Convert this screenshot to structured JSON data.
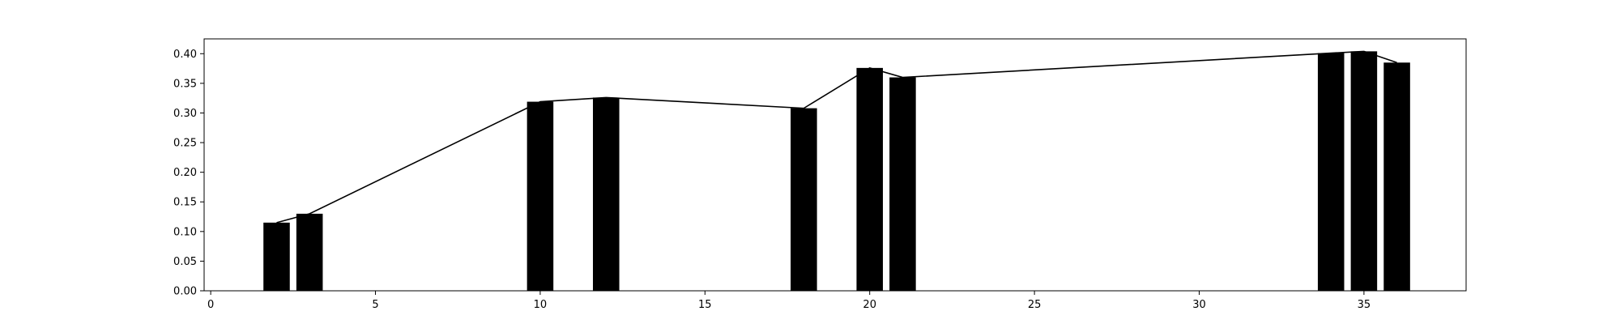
{
  "chart_data": {
    "type": "bar",
    "title": "",
    "xlabel": "",
    "ylabel": "",
    "x": [
      2,
      3,
      10,
      12,
      18,
      20,
      21,
      34,
      35,
      36
    ],
    "values": [
      0.115,
      0.13,
      0.319,
      0.326,
      0.308,
      0.376,
      0.36,
      0.401,
      0.404,
      0.385
    ],
    "xlim": [
      -0.2,
      38.1
    ],
    "ylim": [
      0.0,
      0.425
    ],
    "xticks": [
      0,
      5,
      10,
      15,
      20,
      25,
      30,
      35
    ],
    "yticks": [
      0.0,
      0.05,
      0.1,
      0.15,
      0.2,
      0.25,
      0.3,
      0.35,
      0.4
    ],
    "ytick_labels": [
      "0.00",
      "0.05",
      "0.10",
      "0.15",
      "0.20",
      "0.25",
      "0.30",
      "0.35",
      "0.40"
    ],
    "line_overlay": true,
    "grid": false,
    "bar_color": "#000000",
    "line_color": "#000000"
  }
}
